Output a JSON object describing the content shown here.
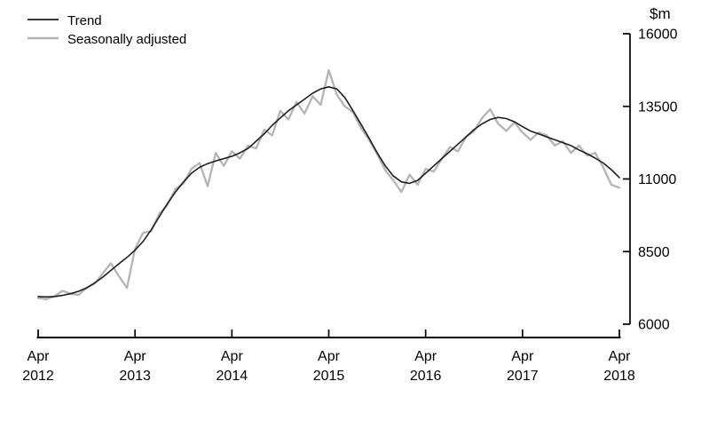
{
  "chart_data": {
    "type": "line",
    "title": "",
    "unit_label": "$m",
    "axis_color": "#000000",
    "legend_position": "top-left",
    "grid": false,
    "x_axis": {
      "start_label": "Apr 2012",
      "end_label": "Apr 2018",
      "tick_positions": [
        0,
        12,
        24,
        36,
        48,
        60,
        72
      ],
      "tick_labels": [
        [
          "Apr",
          "2012"
        ],
        [
          "Apr",
          "2013"
        ],
        [
          "Apr",
          "2014"
        ],
        [
          "Apr",
          "2015"
        ],
        [
          "Apr",
          "2016"
        ],
        [
          "Apr",
          "2017"
        ],
        [
          "Apr",
          "2018"
        ]
      ]
    },
    "y_axis": {
      "min": 6000,
      "max": 16000,
      "ticks": [
        6000,
        8500,
        11000,
        13500,
        16000
      ]
    },
    "series": [
      {
        "name": "Trend",
        "color": "#1f1f1f",
        "stroke_width": 1.6,
        "values": [
          6950,
          6940,
          6950,
          6990,
          7050,
          7130,
          7250,
          7420,
          7620,
          7850,
          8080,
          8300,
          8550,
          8850,
          9250,
          9700,
          10150,
          10550,
          10900,
          11200,
          11400,
          11530,
          11620,
          11700,
          11780,
          11900,
          12050,
          12300,
          12550,
          12850,
          13100,
          13350,
          13550,
          13750,
          13950,
          14100,
          14170,
          14100,
          13800,
          13350,
          12880,
          12400,
          11900,
          11450,
          11100,
          10900,
          10850,
          10950,
          11200,
          11450,
          11700,
          11950,
          12200,
          12450,
          12700,
          12900,
          13050,
          13120,
          13080,
          12970,
          12800,
          12650,
          12550,
          12450,
          12350,
          12250,
          12150,
          12000,
          11870,
          11720,
          11550,
          11320,
          11050
        ]
      },
      {
        "name": "Seasonally adjusted",
        "color": "#b4b4b4",
        "stroke_width": 2.3,
        "values": [
          6900,
          6860,
          6960,
          7150,
          7050,
          7010,
          7250,
          7400,
          7750,
          8100,
          7650,
          7250,
          8600,
          9150,
          9200,
          9800,
          10100,
          10650,
          10850,
          11350,
          11550,
          10750,
          11900,
          11450,
          11950,
          11700,
          12150,
          12050,
          12700,
          12500,
          13350,
          13050,
          13650,
          13250,
          13850,
          13550,
          14750,
          13900,
          13500,
          13300,
          12750,
          12350,
          11850,
          11300,
          10950,
          10550,
          11150,
          10800,
          11350,
          11250,
          11700,
          12100,
          11950,
          12450,
          12650,
          13100,
          13400,
          12900,
          12650,
          12950,
          12600,
          12350,
          12600,
          12500,
          12150,
          12300,
          11900,
          12150,
          11800,
          11900,
          11400,
          10800,
          10700
        ]
      }
    ]
  }
}
